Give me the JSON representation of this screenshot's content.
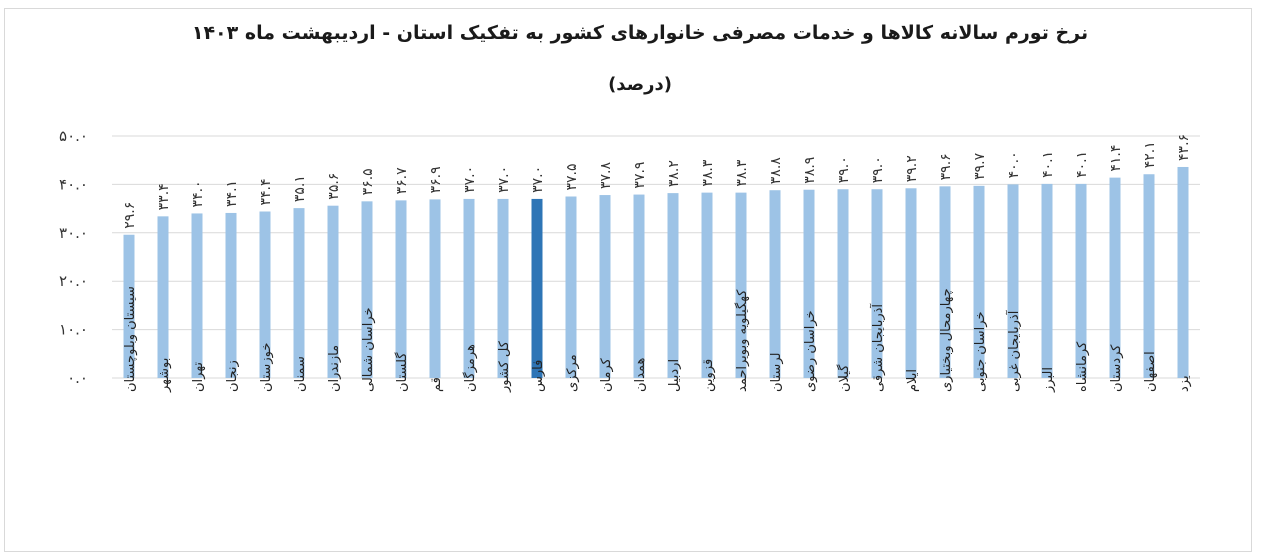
{
  "chart_data": {
    "type": "bar",
    "title": "نرخ تورم سالانه کالاها و خدمات مصرفی خانوارهای کشور به تفکیک استان - اردیبهشت ماه ۱۴۰۳",
    "subtitle": "(درصد)",
    "xlabel": "",
    "ylabel": "",
    "ylim": [
      0,
      50
    ],
    "yticks": [
      "۰.۰",
      "۱۰.۰",
      "۲۰.۰",
      "۳۰.۰",
      "۴۰.۰",
      "۵۰.۰"
    ],
    "grid": true,
    "highlight_index": 12,
    "colors": {
      "bar": "#9dc3e6",
      "highlight": "#2e75b6",
      "grid": "#d9d9d9"
    },
    "categories": [
      "سیستان وبلوچستان",
      "بوشهر",
      "تهران",
      "زنجان",
      "خوزستان",
      "سمنان",
      "مازندران",
      "خراسان شمالی",
      "گلستان",
      "قم",
      "هرمزگان",
      "کل کشور",
      "فارس",
      "مرکزی",
      "کرمان",
      "همدان",
      "اردبیل",
      "قزوین",
      "کهگیلویه وبویراحمد",
      "لرستان",
      "خراسان رضوی",
      "گیلان",
      "آذربایجان شرقی",
      "ایلام",
      "چهارمحال وبختیاری",
      "خراسان جنوبی",
      "آذربایجان غربی",
      "البرز",
      "کرمانشاه",
      "کردستان",
      "اصفهان",
      "یزد"
    ],
    "values": [
      29.6,
      33.4,
      34.0,
      34.1,
      34.4,
      35.1,
      35.6,
      36.5,
      36.7,
      36.9,
      37.0,
      37.0,
      37.0,
      37.5,
      37.8,
      37.9,
      38.2,
      38.3,
      38.3,
      38.8,
      38.9,
      39.0,
      39.0,
      39.2,
      39.6,
      39.7,
      40.0,
      40.1,
      40.1,
      41.4,
      42.1,
      43.6
    ],
    "value_labels": [
      "۲۹.۶",
      "۳۳.۴",
      "۳۴.۰",
      "۳۴.۱",
      "۳۴.۴",
      "۳۵.۱",
      "۳۵.۶",
      "۳۶.۵",
      "۳۶.۷",
      "۳۶.۹",
      "۳۷.۰",
      "۳۷.۰",
      "۳۷.۰",
      "۳۷.۵",
      "۳۷.۸",
      "۳۷.۹",
      "۳۸.۲",
      "۳۸.۳",
      "۳۸.۳",
      "۳۸.۸",
      "۳۸.۹",
      "۳۹.۰",
      "۳۹.۰",
      "۳۹.۲",
      "۳۹.۶",
      "۳۹.۷",
      "۴۰.۰",
      "۴۰.۱",
      "۴۰.۱",
      "۴۱.۴",
      "۴۲.۱",
      "۴۳.۶"
    ]
  }
}
